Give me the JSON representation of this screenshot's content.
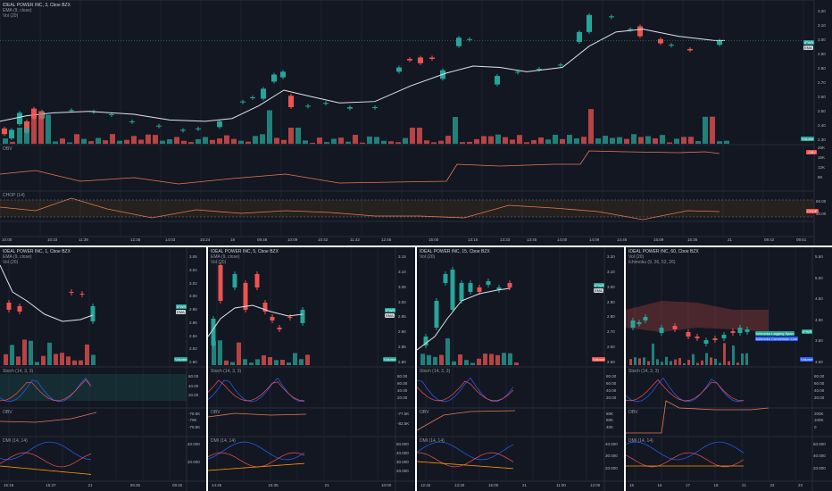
{
  "colors": {
    "up": "#26a69a",
    "down": "#ef5350",
    "ema": "#e0e3eb",
    "obv": "#e57a50",
    "chop": "#e57a50",
    "dmi_pos": "#2962ff",
    "dmi_neg": "#ef5350",
    "adx": "#ff9800",
    "stoch_k": "#2962ff",
    "stoch_d": "#ef5350"
  },
  "main": {
    "title": "IDEAL POWER INC, 3, Cboe BZX",
    "ema_label": "EMA (9, close)",
    "vol_label": "Vol (20)",
    "obv_label": "OBV",
    "chop_label": "CHOP (14)",
    "price_ticks": [
      "3.20",
      "3.10",
      "3.00",
      "2.90",
      "2.80",
      "2.70",
      "2.60",
      "2.50",
      "2.40",
      "2.30"
    ],
    "obv_ticks": [
      "20K",
      "16K",
      "12K",
      "8K"
    ],
    "chop_ticks": [
      "60.00",
      "40.00"
    ],
    "price_tag": "IPWR",
    "ema_tag": "EMA",
    "vol_tag": "Volume",
    "obv_tag": "-OBV",
    "chop_tag": "CHOP",
    "time_ticks": [
      "10:00",
      "10:33",
      "11:39",
      "12:36",
      "14:03",
      "15:24",
      "18",
      "09:48",
      "10:09",
      "10:42",
      "11:42",
      "12:45",
      "15:00",
      "13:15",
      "13:33",
      "13:45",
      "14:00",
      "14:09",
      "14:45",
      "15:09",
      "15:36",
      "21",
      "09:42",
      "09:51"
    ]
  },
  "p1": {
    "title": "IDEAL POWER INC, 1, Cboe BZX",
    "vol_label": "Vol (20)",
    "ema_label": "EMA (9, close)",
    "price_ticks": [
      "3.06",
      "3.04",
      "3.02",
      "3.00",
      "2.98",
      "2.96",
      "2.94",
      "2.92",
      "2.90"
    ],
    "stoch_label": "Stoch (14, 3, 3)",
    "stoch_ticks": [
      "60.00",
      "40.00",
      "20.00"
    ],
    "obv_label": "OBV",
    "obv_ticks": [
      "-78.5K",
      "-79K",
      "-79.5K"
    ],
    "dmi_label": "DMI (14, 14)",
    "dmi_ticks": [
      "40.000",
      "20.000"
    ],
    "time_ticks": [
      "15:18",
      "15:37",
      "21",
      "09:35",
      "09:40"
    ],
    "price_tag": "IPWR",
    "ema_tag": "EMA",
    "vol_tag": "Volume"
  },
  "p2": {
    "title": "IDEAL POWER INC, 5, Cboe BZX",
    "ema_label": "EMA (9, close)",
    "vol_label": "Vol (20)",
    "price_ticks": [
      "3.15",
      "3.10",
      "3.05",
      "3.00",
      "2.95",
      "2.90",
      "2.85",
      "2.80"
    ],
    "stoch_label": "Stoch (14, 3, 3)",
    "stoch_ticks": [
      "80.00",
      "60.00",
      "40.00",
      "20.00"
    ],
    "obv_label": "OBV",
    "obv_ticks": [
      "-77.5K",
      "-82.5K"
    ],
    "dmi_label": "DMI (14, 14)",
    "dmi_ticks": [
      "60.000",
      "40.000",
      "30.000",
      "20.000"
    ],
    "time_ticks": [
      "14:45",
      "15:35",
      "21",
      "10:00"
    ],
    "price_tag": "IPWR",
    "ema_tag": "EMA",
    "vol_tag": "Volume"
  },
  "p3": {
    "title": "IDEAL POWER INC, 15, Cboe BZX",
    "vol_label": "Vol (20)",
    "price_ticks": [
      "3.20",
      "3.10",
      "3.00",
      "2.90",
      "2.80",
      "2.70",
      "2.60",
      "2.50"
    ],
    "stoch_label": "Stoch (14, 3, 3)",
    "stoch_ticks": [
      "80.00",
      "60.00",
      "40.00",
      "20.00"
    ],
    "obv_label": "OBV",
    "obv_ticks": [
      "80K",
      "60K",
      "40K"
    ],
    "dmi_label": "DMI (14, 14)",
    "dmi_ticks": [
      "40.000",
      "30.000",
      "20.000"
    ],
    "time_ticks": [
      "12:45",
      "13:30",
      "15:00",
      "21",
      "11:00",
      "12:00"
    ],
    "price_tag": "IPWR",
    "ema_tag": "EMA",
    "vol_tag": "Volume"
  },
  "p4": {
    "title": "IDEAL POWER INC, 60, Cboe BZX",
    "vol_label": "Vol (20)",
    "ichi_label": "Ichimoku (9, 26, 52, 26)",
    "price_ticks": [
      "5.50",
      "5.00",
      "4.50",
      "4.00",
      "3.50",
      "3.00"
    ],
    "stoch_label": "Stoch (14, 3, 3)",
    "stoch_ticks": [
      "80.00",
      "60.00",
      "40.00",
      "20.00"
    ],
    "obv_label": "OBV",
    "obv_ticks": [
      "200K",
      "100K",
      "0"
    ],
    "dmi_label": "DMI (14, 14)",
    "dmi_ticks": [
      "60.000",
      "40.000",
      "20.000"
    ],
    "time_ticks": [
      "15",
      "16",
      "17",
      "18",
      "21",
      "22",
      "23"
    ],
    "price_tag": "IPWR",
    "ichi_tag1": "Ichimoku Lagging Span",
    "ichi_tag2": "Ichimoku Conversion Line",
    "vol_tag": "Volume"
  }
}
